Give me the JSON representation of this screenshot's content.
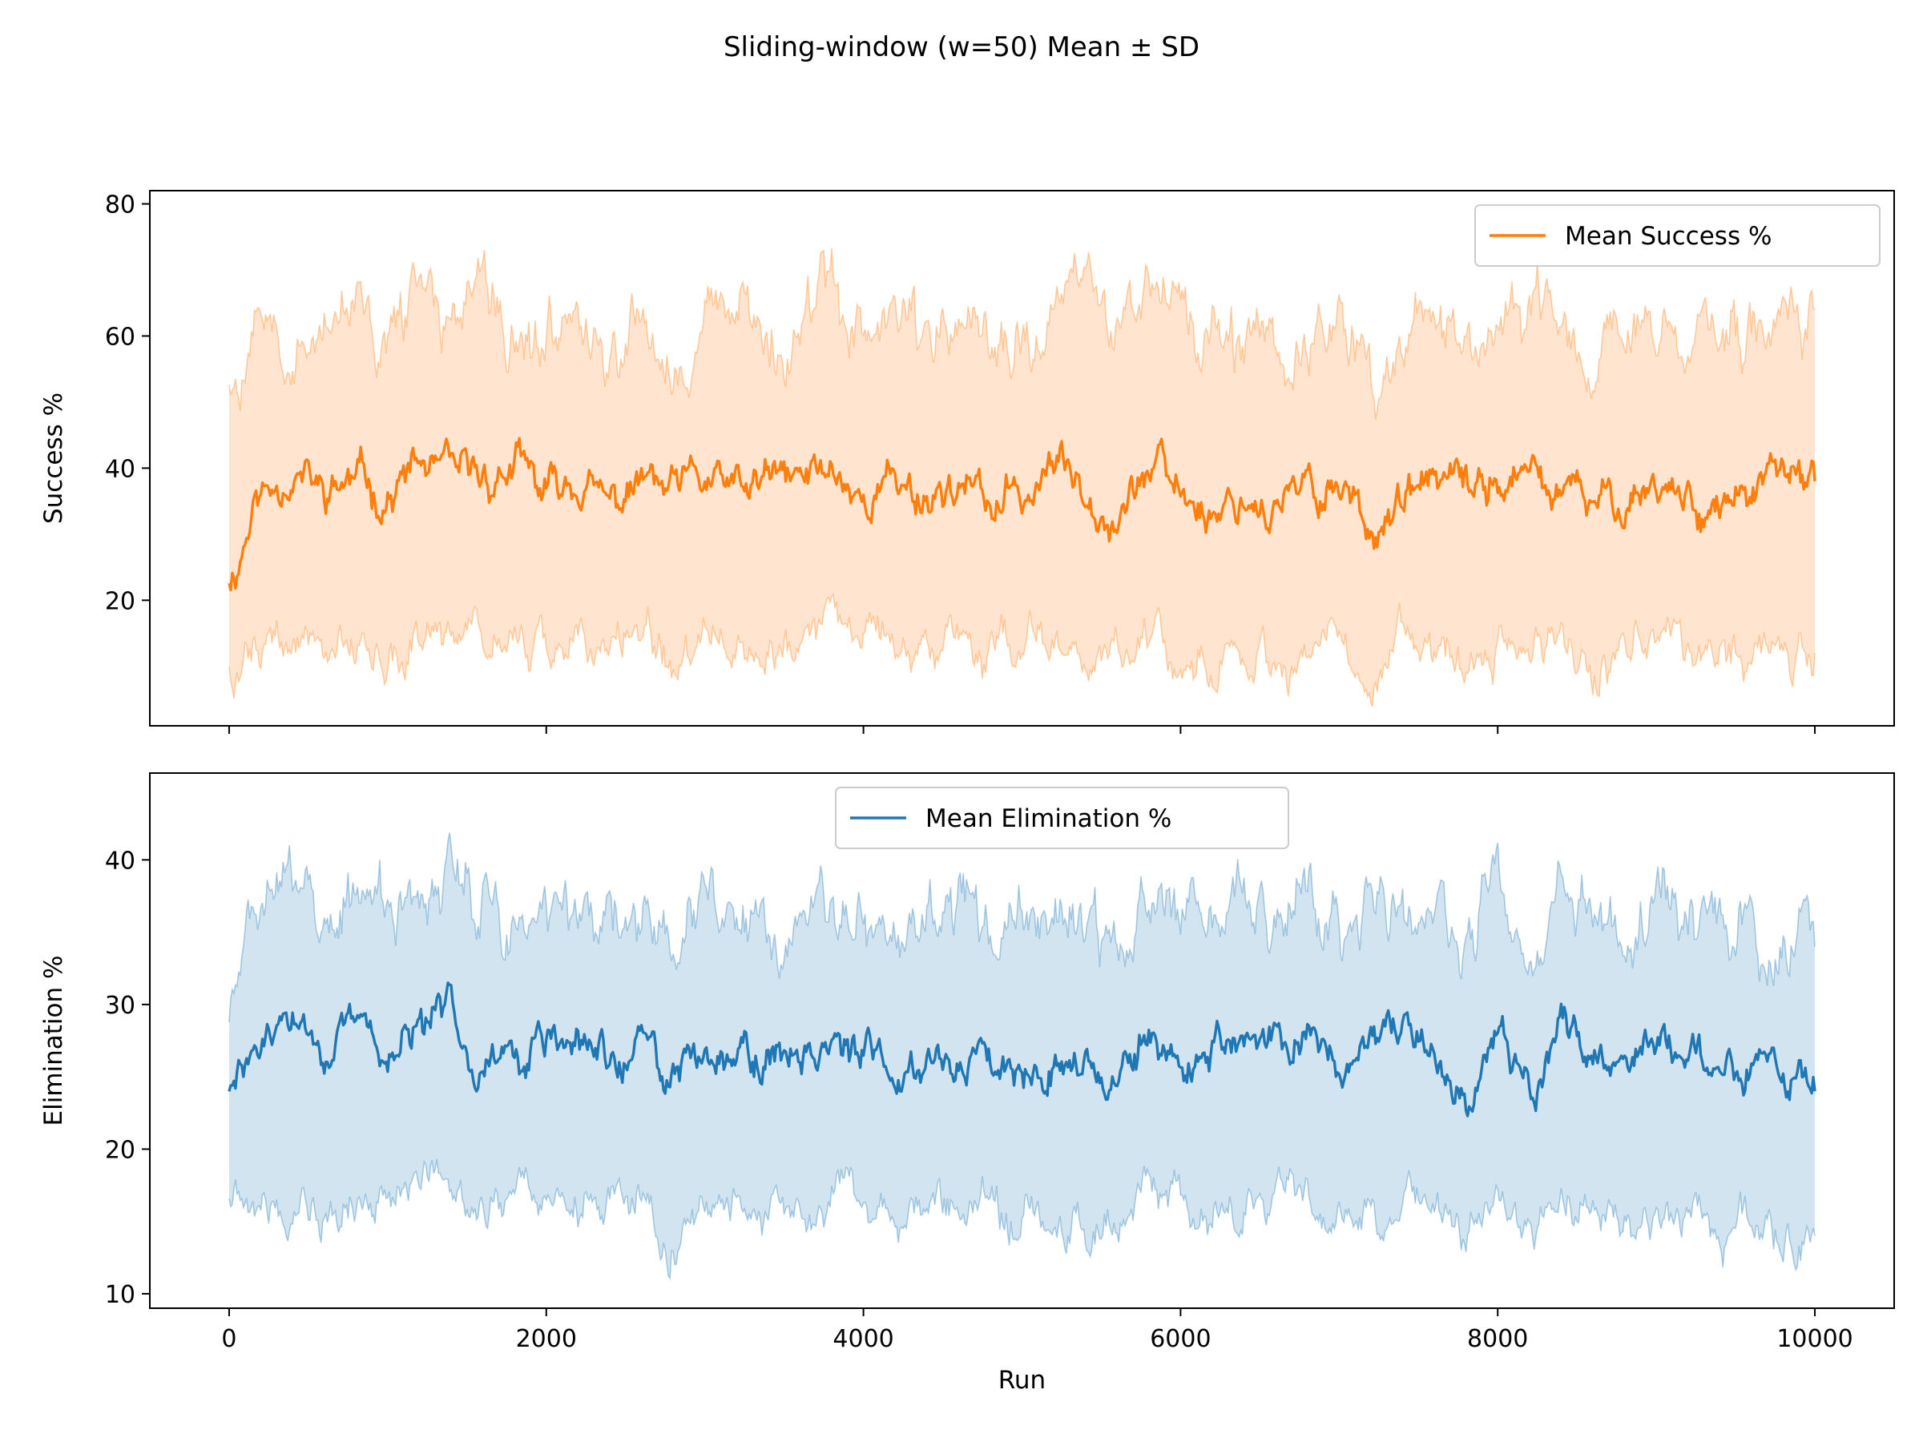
{
  "figure": {
    "title": "Sliding-window (w=50) Mean ± SD"
  },
  "colors": {
    "success": "#ff7f0e",
    "elimination": "#1f77b4",
    "band_alpha": 0.2,
    "edge_alpha": 0.35
  },
  "chart_data": [
    {
      "type": "line",
      "panel": "top",
      "title": "",
      "xlabel": "",
      "ylabel": "Success %",
      "xlim": [
        -500,
        10500
      ],
      "ylim": [
        1,
        82
      ],
      "xticks": [
        0,
        2000,
        4000,
        6000,
        8000,
        10000
      ],
      "xtick_labels_shown": false,
      "yticks": [
        20,
        40,
        60,
        80
      ],
      "ytick_labels": [
        "20",
        "40",
        "60",
        "80"
      ],
      "legend": {
        "position": "upper right",
        "entries": [
          "Mean Success %"
        ]
      },
      "series": [
        {
          "name": "Mean Success %",
          "color_key": "success",
          "x": [
            0,
            200,
            400,
            600,
            800,
            1000,
            1200,
            1400,
            1600,
            1800,
            2000,
            2200,
            2400,
            2600,
            2800,
            3000,
            3200,
            3400,
            3600,
            3800,
            4000,
            4200,
            4400,
            4600,
            4800,
            5000,
            5200,
            5400,
            5600,
            5800,
            6000,
            6200,
            6400,
            6600,
            6800,
            7000,
            7200,
            7400,
            7600,
            7800,
            8000,
            8200,
            8400,
            8600,
            8800,
            9000,
            9200,
            9400,
            9600,
            9800,
            10000
          ],
          "mean": [
            24,
            36,
            40,
            36,
            38,
            36,
            40,
            38,
            38,
            40,
            36,
            38,
            34,
            38,
            36,
            38,
            36,
            38,
            38,
            40,
            36,
            38,
            36,
            38,
            34,
            36,
            40,
            38,
            34,
            40,
            36,
            34,
            36,
            34,
            36,
            38,
            32,
            34,
            38,
            36,
            38,
            38,
            36,
            34,
            36,
            38,
            36,
            34,
            36,
            38,
            38
          ],
          "upper": [
            54,
            60,
            62,
            60,
            62,
            60,
            64,
            62,
            64,
            64,
            58,
            60,
            56,
            62,
            58,
            60,
            62,
            62,
            62,
            64,
            56,
            62,
            58,
            64,
            58,
            60,
            64,
            62,
            58,
            66,
            62,
            56,
            58,
            58,
            58,
            60,
            54,
            58,
            62,
            58,
            60,
            62,
            60,
            56,
            58,
            60,
            58,
            56,
            60,
            62,
            64
          ],
          "lower": [
            10,
            14,
            14,
            12,
            14,
            13,
            14,
            12,
            14,
            16,
            12,
            14,
            12,
            14,
            12,
            14,
            12,
            12,
            13,
            14,
            12,
            14,
            12,
            14,
            10,
            12,
            14,
            13,
            12,
            14,
            12,
            12,
            14,
            12,
            14,
            14,
            8,
            12,
            14,
            12,
            14,
            14,
            12,
            10,
            12,
            14,
            12,
            10,
            12,
            12,
            12
          ]
        }
      ]
    },
    {
      "type": "line",
      "panel": "bottom",
      "title": "",
      "xlabel": "Run",
      "ylabel": "Elimination %",
      "xlim": [
        -500,
        10500
      ],
      "ylim": [
        9,
        46
      ],
      "xticks": [
        0,
        2000,
        4000,
        6000,
        8000,
        10000
      ],
      "xtick_labels": [
        "0",
        "2000",
        "4000",
        "6000",
        "8000",
        "10000"
      ],
      "yticks": [
        10,
        20,
        30,
        40
      ],
      "ytick_labels": [
        "10",
        "20",
        "30",
        "40"
      ],
      "legend": {
        "position": "upper center",
        "entries": [
          "Mean Elimination %"
        ]
      },
      "series": [
        {
          "name": "Mean Elimination %",
          "color_key": "elimination",
          "x": [
            0,
            200,
            400,
            600,
            800,
            1000,
            1200,
            1400,
            1600,
            1800,
            2000,
            2200,
            2400,
            2600,
            2800,
            3000,
            3200,
            3400,
            3600,
            3800,
            4000,
            4200,
            4400,
            4600,
            4800,
            5000,
            5200,
            5400,
            5600,
            5800,
            6000,
            6200,
            6400,
            6600,
            6800,
            7000,
            7200,
            7400,
            7600,
            7800,
            8000,
            8200,
            8400,
            8600,
            8800,
            9000,
            9200,
            9400,
            9600,
            9800,
            10000
          ],
          "mean": [
            24,
            27,
            29,
            27,
            28,
            27,
            28,
            29,
            27,
            26,
            27,
            27,
            26,
            27,
            25,
            27,
            27,
            26,
            27,
            28,
            26,
            25,
            27,
            26,
            27,
            26,
            27,
            26,
            25,
            27,
            26,
            27,
            27,
            27,
            28,
            26,
            27,
            27,
            27,
            24,
            28,
            25,
            28,
            27,
            26,
            27,
            27,
            26,
            26,
            25,
            24
          ],
          "upper": [
            30,
            37,
            38,
            36,
            38,
            36,
            37,
            38,
            36,
            35,
            36,
            36,
            35,
            36,
            34,
            36,
            36,
            35,
            37,
            37,
            35,
            34,
            36,
            36,
            36,
            35,
            36,
            35,
            34,
            37,
            35,
            36,
            36,
            36,
            37,
            35,
            36,
            36,
            36,
            32,
            38,
            34,
            38,
            36,
            35,
            36,
            36,
            35,
            35,
            34,
            34
          ],
          "lower": [
            17,
            17,
            18,
            16,
            17,
            16,
            17,
            17,
            16,
            16,
            17,
            16,
            16,
            16,
            14,
            16,
            16,
            15,
            17,
            17,
            15,
            15,
            16,
            16,
            16,
            15,
            16,
            15,
            15,
            17,
            16,
            16,
            16,
            16,
            17,
            15,
            16,
            16,
            16,
            15,
            16,
            14,
            17,
            16,
            15,
            16,
            16,
            15,
            15,
            14,
            14
          ]
        }
      ]
    }
  ]
}
